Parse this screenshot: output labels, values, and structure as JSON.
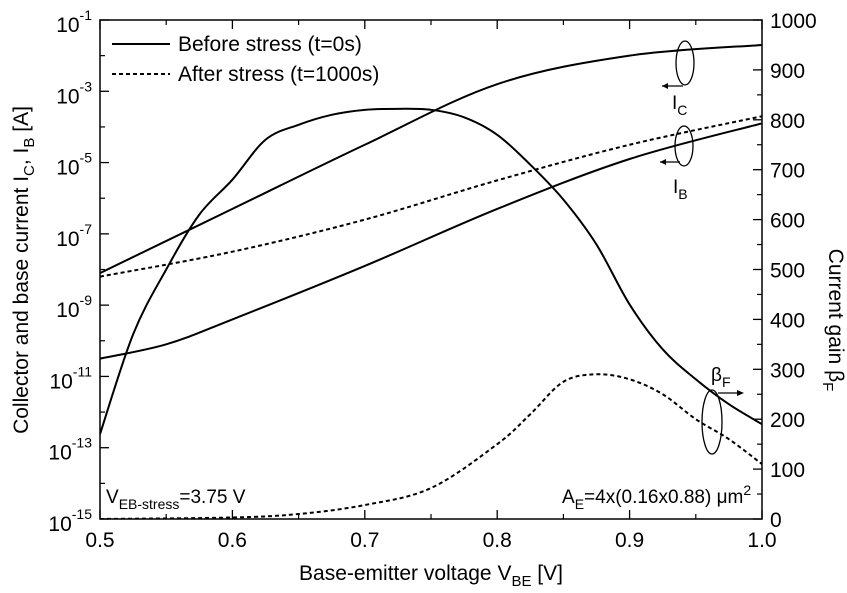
{
  "chart_data": {
    "type": "line",
    "title": "",
    "xlabel": {
      "main": "Base-emitter voltage V",
      "sub": "BE",
      "unit": " [V]"
    },
    "ylabel_left": {
      "p1": "Collector and base current I",
      "s1": "C",
      "p2": ", I",
      "s2": "B",
      "unit": " [A]"
    },
    "ylabel_right": {
      "main": "Current gain β",
      "sub": "F"
    },
    "xlim": [
      0.5,
      1.0
    ],
    "ylim_left_log10": [
      -15,
      -1
    ],
    "ylim_right": [
      0,
      1000
    ],
    "yscale_left": "log",
    "grid": false,
    "legend_placement": "top-left",
    "x_ticks": [
      "0.5",
      "0.6",
      "0.7",
      "0.8",
      "0.9",
      "1.0"
    ],
    "x_tick_values": [
      0.5,
      0.6,
      0.7,
      0.8,
      0.9,
      1.0
    ],
    "y_left_ticks": [
      {
        "exp": -1,
        "label": "10",
        "sup": "-1"
      },
      {
        "exp": -3,
        "label": "10",
        "sup": "-3"
      },
      {
        "exp": -5,
        "label": "10",
        "sup": "-5"
      },
      {
        "exp": -7,
        "label": "10",
        "sup": "-7"
      },
      {
        "exp": -9,
        "label": "10",
        "sup": "-9"
      },
      {
        "exp": -11,
        "label": "10",
        "sup": "-11"
      },
      {
        "exp": -13,
        "label": "10",
        "sup": "-13"
      },
      {
        "exp": -15,
        "label": "10",
        "sup": "-15"
      }
    ],
    "y_right_ticks": [
      "0",
      "100",
      "200",
      "300",
      "400",
      "500",
      "600",
      "700",
      "800",
      "900",
      "1000"
    ],
    "y_right_tick_values": [
      0,
      100,
      200,
      300,
      400,
      500,
      600,
      700,
      800,
      900,
      1000
    ],
    "legend": [
      {
        "label": "Before stress (t=0s)",
        "style": "solid"
      },
      {
        "label": "After stress (t=1000s)",
        "style": "dashed"
      }
    ],
    "series": [
      {
        "name": "Before stress (t=0s)",
        "quantity": "I_C",
        "axis": "left-log10",
        "style": "solid",
        "x": [
          0.5,
          0.6,
          0.7,
          0.8,
          0.9,
          1.0
        ],
        "y": [
          -8.1,
          -6.3,
          -4.5,
          -2.8,
          -2.0,
          -1.7
        ]
      },
      {
        "name": "Before stress (t=0s)",
        "quantity": "I_B",
        "axis": "left-log10",
        "style": "solid",
        "x": [
          0.5,
          0.55,
          0.6,
          0.7,
          0.8,
          0.9,
          1.0
        ],
        "y": [
          -10.5,
          -10.1,
          -9.4,
          -7.9,
          -6.3,
          -4.9,
          -3.9
        ]
      },
      {
        "name": "After stress (t=1000s)",
        "quantity": "I_B",
        "axis": "left-log10",
        "style": "dashed",
        "x": [
          0.5,
          0.6,
          0.7,
          0.8,
          0.9,
          1.0
        ],
        "y": [
          -8.2,
          -7.5,
          -6.6,
          -5.5,
          -4.5,
          -3.7
        ]
      },
      {
        "name": "Before stress (t=0s)",
        "quantity": "beta_F",
        "axis": "right",
        "style": "solid",
        "x": [
          0.5,
          0.525,
          0.55,
          0.575,
          0.6,
          0.625,
          0.65,
          0.675,
          0.7,
          0.725,
          0.75,
          0.775,
          0.8,
          0.825,
          0.85,
          0.875,
          0.9,
          0.925,
          0.95,
          0.975,
          1.0
        ],
        "y": [
          170,
          370,
          500,
          610,
          680,
          760,
          790,
          810,
          820,
          822,
          820,
          805,
          770,
          710,
          640,
          550,
          430,
          340,
          280,
          230,
          190
        ]
      },
      {
        "name": "After stress (t=1000s)",
        "quantity": "beta_F",
        "axis": "right",
        "style": "dashed",
        "x": [
          0.5,
          0.6,
          0.65,
          0.7,
          0.75,
          0.8,
          0.825,
          0.85,
          0.875,
          0.9,
          0.925,
          0.95,
          0.975,
          1.0
        ],
        "y": [
          0,
          3,
          10,
          28,
          62,
          150,
          210,
          275,
          290,
          280,
          250,
          200,
          160,
          110
        ]
      }
    ],
    "annotations": {
      "ic_label": {
        "main": "I",
        "sub": "C"
      },
      "ib_label": {
        "main": "I",
        "sub": "B"
      },
      "beta_label": {
        "main": "β",
        "sub": "F"
      },
      "stress_label": {
        "main": "V",
        "sub": "EB-stress",
        "rest": "=3.75 V"
      },
      "area_label": {
        "main": "A",
        "sub": "E",
        "rest": "=4x(0.16x0.88) μm",
        "sup": "2"
      }
    }
  }
}
